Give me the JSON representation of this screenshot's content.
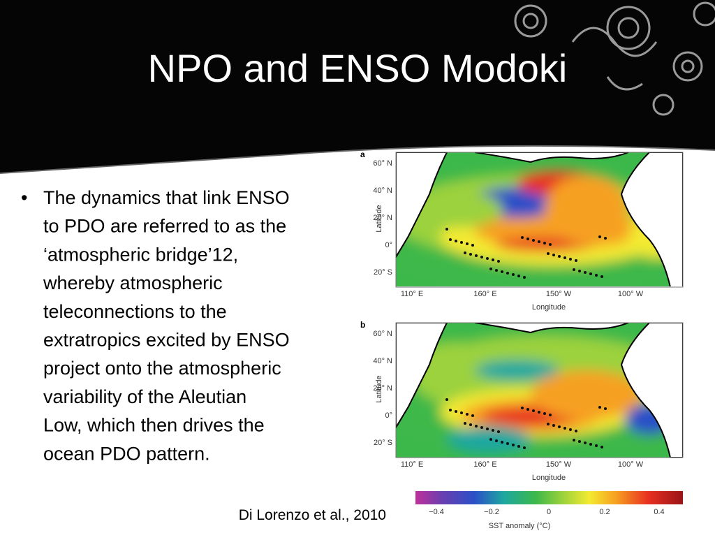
{
  "slide": {
    "title": "NPO and ENSO Modoki",
    "bullet_lines": [
      "The dynamics that link ENSO",
      "to PDO are referred to as the",
      "‘atmospheric bridge’12,",
      "whereby atmospheric",
      "teleconnections to the",
      "extratropics excited by ENSO",
      "project onto the atmospheric",
      "variability of the Aleutian",
      "Low, which then drives the",
      "ocean PDO pattern."
    ],
    "citation": "Di Lorenzo et al., 2010",
    "panels": [
      {
        "label": "a",
        "lat_ticks": [
          "60° N",
          "40° N",
          "20° N",
          "0°",
          "20° S"
        ],
        "lon_ticks": [
          "110° E",
          "160° E",
          "150° W",
          "100° W"
        ],
        "ylabel": "Latitude",
        "xlabel": "Longitude"
      },
      {
        "label": "b",
        "lat_ticks": [
          "60° N",
          "40° N",
          "20° N",
          "0°",
          "20° S"
        ],
        "lon_ticks": [
          "110° E",
          "160° E",
          "150° W",
          "100° W"
        ],
        "ylabel": "Latitude",
        "xlabel": "Longitude"
      }
    ],
    "colorbar": {
      "ticks": [
        "−0.4",
        "−0.2",
        "0",
        "0.2",
        "0.4"
      ],
      "label": "SST anomaly (°C)"
    }
  }
}
